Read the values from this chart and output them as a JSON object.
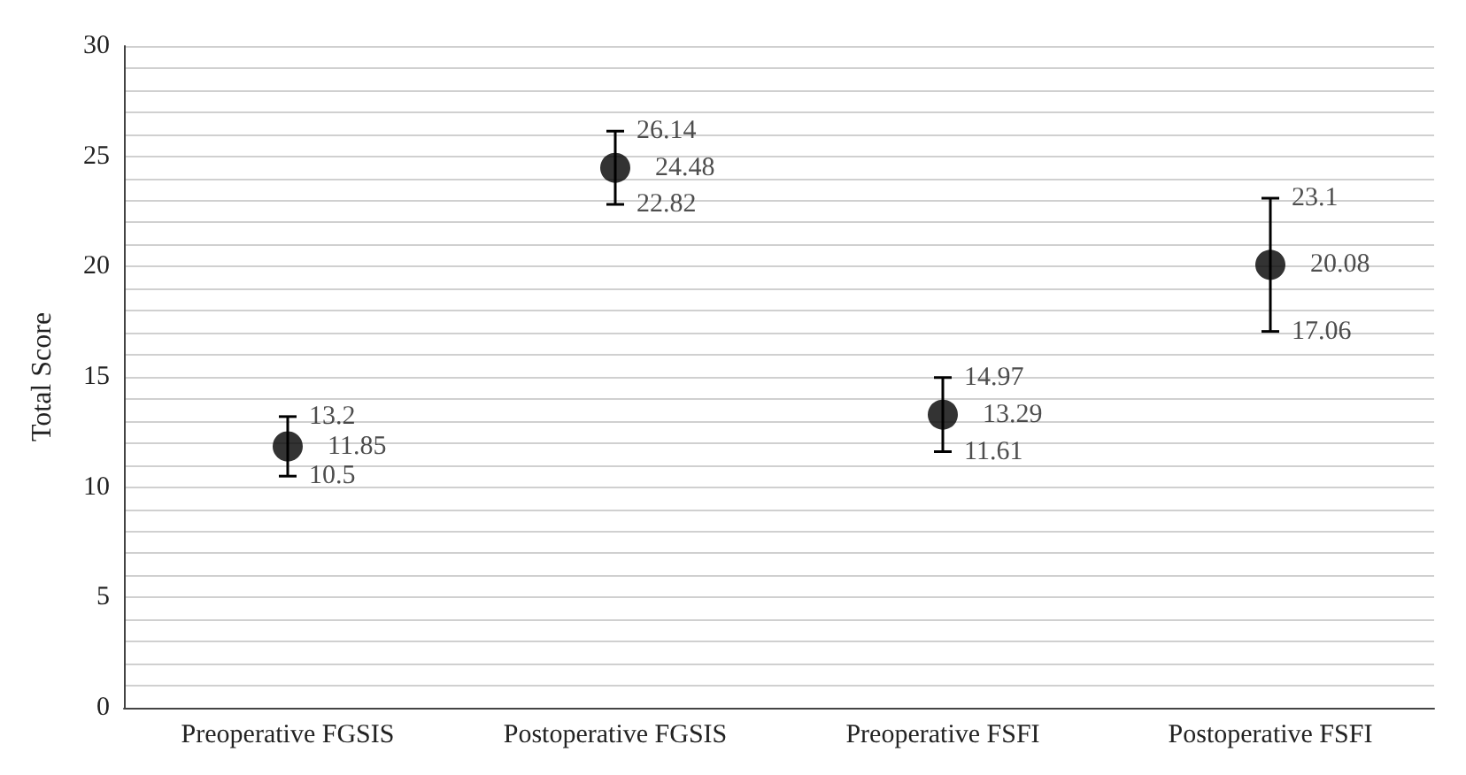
{
  "chart_data": {
    "type": "scatter",
    "ylabel": "Total Score",
    "categories": [
      "Preoperative FGSIS",
      "Postoperative FGSIS",
      "Preoperative FSFI",
      "Postoperative FSFI"
    ],
    "values": [
      11.85,
      24.48,
      13.29,
      20.08
    ],
    "errors": [
      [
        10.5,
        13.2
      ],
      [
        22.82,
        26.14
      ],
      [
        11.61,
        14.97
      ],
      [
        17.06,
        23.1
      ]
    ],
    "value_labels": [
      "11.85",
      "24.48",
      "13.29",
      "20.08"
    ],
    "annotations": [
      {
        "text": "13.2",
        "x": "Preoperative FGSIS",
        "y": 13.2
      },
      {
        "text": "10.5",
        "x": "Preoperative FGSIS",
        "y": 10.5
      },
      {
        "text": "26.14",
        "x": "Postoperative FGSIS",
        "y": 26.14
      },
      {
        "text": "22.82",
        "x": "Postoperative FGSIS",
        "y": 22.82
      },
      {
        "text": "14.97",
        "x": "Preoperative FSFI",
        "y": 14.97
      },
      {
        "text": "11.61",
        "x": "Preoperative FSFI",
        "y": 11.61
      },
      {
        "text": "23.1",
        "x": "Postoperative FSFI",
        "y": 23.1
      },
      {
        "text": "17.06",
        "x": "Postoperative FSFI",
        "y": 17.06
      }
    ],
    "color": "#000000",
    "marker": "circle",
    "grid": "y",
    "ylim": [
      0,
      30
    ],
    "yticks": [
      0,
      {
        "value": 1,
        "label": null
      },
      {
        "value": 2,
        "label": null
      },
      {
        "value": 3,
        "label": null
      },
      {
        "value": 4,
        "label": null
      },
      5,
      {
        "value": 6,
        "label": null
      },
      {
        "value": 7,
        "label": null
      },
      {
        "value": 8,
        "label": null
      },
      {
        "value": 9,
        "label": null
      },
      10,
      {
        "value": 11,
        "label": null
      },
      {
        "value": 12,
        "label": null
      },
      {
        "value": 13,
        "label": null
      },
      {
        "value": 14,
        "label": null
      },
      15,
      {
        "value": 16,
        "label": null
      },
      {
        "value": 17,
        "label": null
      },
      {
        "value": 18,
        "label": null
      },
      {
        "value": 19,
        "label": null
      },
      20,
      {
        "value": 21,
        "label": null
      },
      {
        "value": 22,
        "label": null
      },
      {
        "value": 23,
        "label": null
      },
      {
        "value": 24,
        "label": null
      },
      25,
      {
        "value": 26,
        "label": null
      },
      {
        "value": 27,
        "label": null
      },
      {
        "value": 28,
        "label": null
      },
      {
        "value": 29,
        "label": null
      },
      30
    ]
  }
}
